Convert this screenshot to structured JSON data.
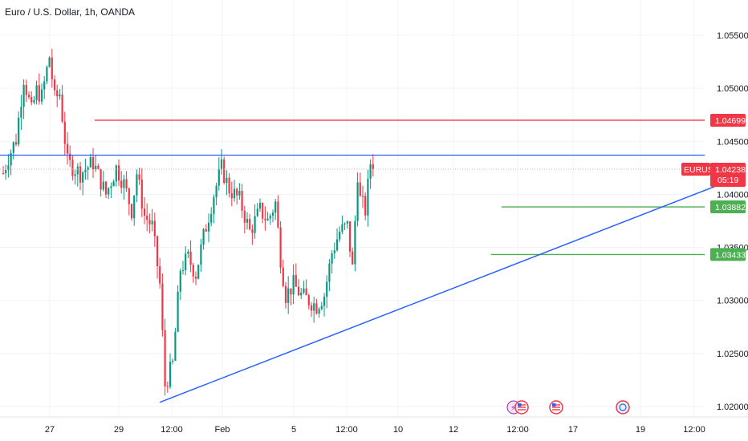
{
  "header": {
    "title": "Euro / U.S. Dollar, 1h, OANDA"
  },
  "colors": {
    "up": "#089981",
    "down": "#f23645",
    "resistance": "#f23645",
    "trend": "#2962ff",
    "support": "#4caf50",
    "grid": "#f0f3fa",
    "price_line": "#f7a9a7"
  },
  "chart_data": {
    "type": "candlestick",
    "symbol": "EURUSD",
    "title": "Euro / U.S. Dollar, 1h, OANDA",
    "ylim": [
      1.0195,
      1.0558
    ],
    "y_ticks": [
      "1.05500",
      "1.05000",
      "1.04500",
      "1.04000",
      "1.03500",
      "1.03000",
      "1.02500",
      "1.02000"
    ],
    "x_ticks": [
      "27",
      "29",
      "12:00",
      "Feb",
      "5",
      "12:00",
      "10",
      "12",
      "12:00",
      "17",
      "19",
      "12:00"
    ],
    "price_path": [
      {
        "t": 0,
        "p": 1.042
      },
      {
        "t": 2,
        "p": 1.0435
      },
      {
        "t": 5,
        "p": 1.0452
      },
      {
        "t": 8,
        "p": 1.051
      },
      {
        "t": 11,
        "p": 1.0478
      },
      {
        "t": 13,
        "p": 1.0498
      },
      {
        "t": 15,
        "p": 1.0492
      },
      {
        "t": 18,
        "p": 1.053
      },
      {
        "t": 20,
        "p": 1.049
      },
      {
        "t": 22,
        "p": 1.0495
      },
      {
        "t": 25,
        "p": 1.043
      },
      {
        "t": 30,
        "p": 1.042
      },
      {
        "t": 35,
        "p": 1.043
      },
      {
        "t": 40,
        "p": 1.04
      },
      {
        "t": 44,
        "p": 1.0425
      },
      {
        "t": 47,
        "p": 1.041
      },
      {
        "t": 50,
        "p": 1.0385
      },
      {
        "t": 52,
        "p": 1.042
      },
      {
        "t": 55,
        "p": 1.038
      },
      {
        "t": 58,
        "p": 1.037
      },
      {
        "t": 61,
        "p": 1.0315
      },
      {
        "t": 63,
        "p": 1.022
      },
      {
        "t": 66,
        "p": 1.024
      },
      {
        "t": 69,
        "p": 1.033
      },
      {
        "t": 72,
        "p": 1.034
      },
      {
        "t": 75,
        "p": 1.0325
      },
      {
        "t": 78,
        "p": 1.036
      },
      {
        "t": 82,
        "p": 1.04
      },
      {
        "t": 85,
        "p": 1.0425
      },
      {
        "t": 88,
        "p": 1.0405
      },
      {
        "t": 92,
        "p": 1.0395
      },
      {
        "t": 96,
        "p": 1.0365
      },
      {
        "t": 100,
        "p": 1.0385
      },
      {
        "t": 103,
        "p": 1.0375
      },
      {
        "t": 106,
        "p": 1.0392
      },
      {
        "t": 108,
        "p": 1.034
      },
      {
        "t": 110,
        "p": 1.0305
      },
      {
        "t": 113,
        "p": 1.0315
      },
      {
        "t": 116,
        "p": 1.0305
      },
      {
        "t": 119,
        "p": 1.03
      },
      {
        "t": 122,
        "p": 1.0295
      },
      {
        "t": 125,
        "p": 1.0305
      },
      {
        "t": 128,
        "p": 1.0345
      },
      {
        "t": 131,
        "p": 1.0365
      },
      {
        "t": 134,
        "p": 1.037
      },
      {
        "t": 136,
        "p": 1.033
      },
      {
        "t": 137,
        "p": 1.0375
      },
      {
        "t": 138,
        "p": 1.042
      },
      {
        "t": 139,
        "p": 1.0395
      },
      {
        "t": 141,
        "p": 1.0385
      },
      {
        "t": 143,
        "p": 1.043
      },
      {
        "t": 144,
        "p": 1.0424
      }
    ],
    "levels": [
      {
        "name": "resistance",
        "value": 1.04699,
        "label": "1.04699",
        "color": "#f23645"
      },
      {
        "name": "support-1",
        "value": 1.03882,
        "label": "1.03882",
        "color": "#4caf50"
      },
      {
        "name": "support-2",
        "value": 1.03433,
        "label": "1.03433",
        "color": "#4caf50"
      }
    ],
    "horizontal_line": {
      "value": 1.0437,
      "color": "#2962ff"
    },
    "trendline": {
      "from": {
        "t": 61,
        "p": 1.0204
      },
      "to": {
        "t": 197,
        "p": 1.0408
      },
      "color": "#2962ff"
    },
    "current": {
      "symbol": "EURUSD",
      "price": "1.04238",
      "countdown": "05:19",
      "value": 1.04238
    },
    "events": [
      "lightning",
      "us-flag",
      "us-flag",
      "us-flag",
      "globe"
    ]
  }
}
